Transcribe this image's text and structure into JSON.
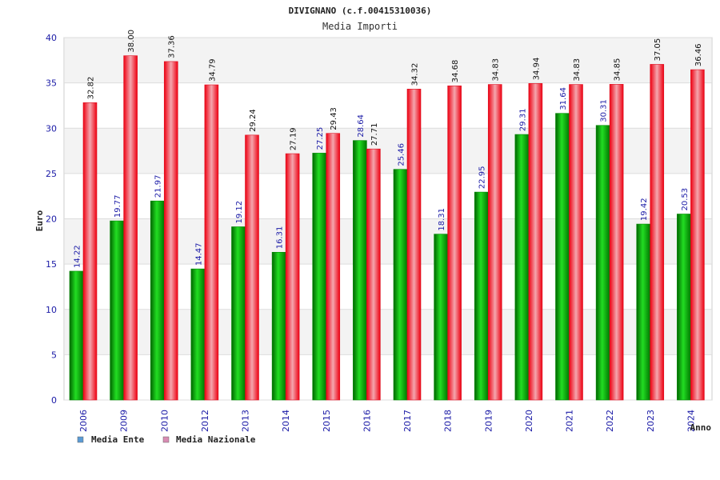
{
  "chart_data": {
    "type": "bar",
    "title": "DIVIGNANO (c.f.00415310036)",
    "subtitle": "Media Importi",
    "xlabel": "Anno",
    "ylabel": "Euro",
    "ylim": [
      0,
      40
    ],
    "yticks": [
      0,
      5,
      10,
      15,
      20,
      25,
      30,
      35,
      40
    ],
    "grid": true,
    "legend_position": "bottom-left",
    "categories": [
      "2006",
      "2009",
      "2010",
      "2012",
      "2013",
      "2014",
      "2015",
      "2016",
      "2017",
      "2018",
      "2019",
      "2020",
      "2021",
      "2022",
      "2023",
      "2024"
    ],
    "series": [
      {
        "name": "Media Ente",
        "color": "#00aa00",
        "legend_color": "#5b9bd5",
        "label_color": "#1a1aa6",
        "values": [
          14.22,
          19.77,
          21.97,
          14.47,
          19.12,
          16.31,
          27.25,
          28.64,
          25.46,
          18.31,
          22.95,
          29.31,
          31.64,
          30.31,
          19.42,
          20.53
        ],
        "labels": [
          "14.22",
          "19.77",
          "21.97",
          "14.47",
          "19.12",
          "16.31",
          "27.25",
          "28.64",
          "25.46",
          "18.31",
          "22.95",
          "29.31",
          "31.64",
          "30.31",
          "19.42",
          "20.53"
        ]
      },
      {
        "name": "Media Nazionale",
        "color": "#ee1122",
        "legend_color": "#d98cb3",
        "label_color": "#111111",
        "values": [
          32.82,
          38.0,
          37.36,
          34.79,
          29.24,
          27.19,
          29.43,
          27.71,
          34.32,
          34.68,
          34.83,
          34.94,
          34.83,
          34.85,
          37.05,
          36.46
        ],
        "labels": [
          "32.82",
          "38.00",
          "37.36",
          "34.79",
          "29.24",
          "27.19",
          "29.43",
          "27.71",
          "34.32",
          "34.68",
          "34.83",
          "34.94",
          "34.83",
          "34.85",
          "37.05",
          "36.46"
        ]
      }
    ]
  }
}
